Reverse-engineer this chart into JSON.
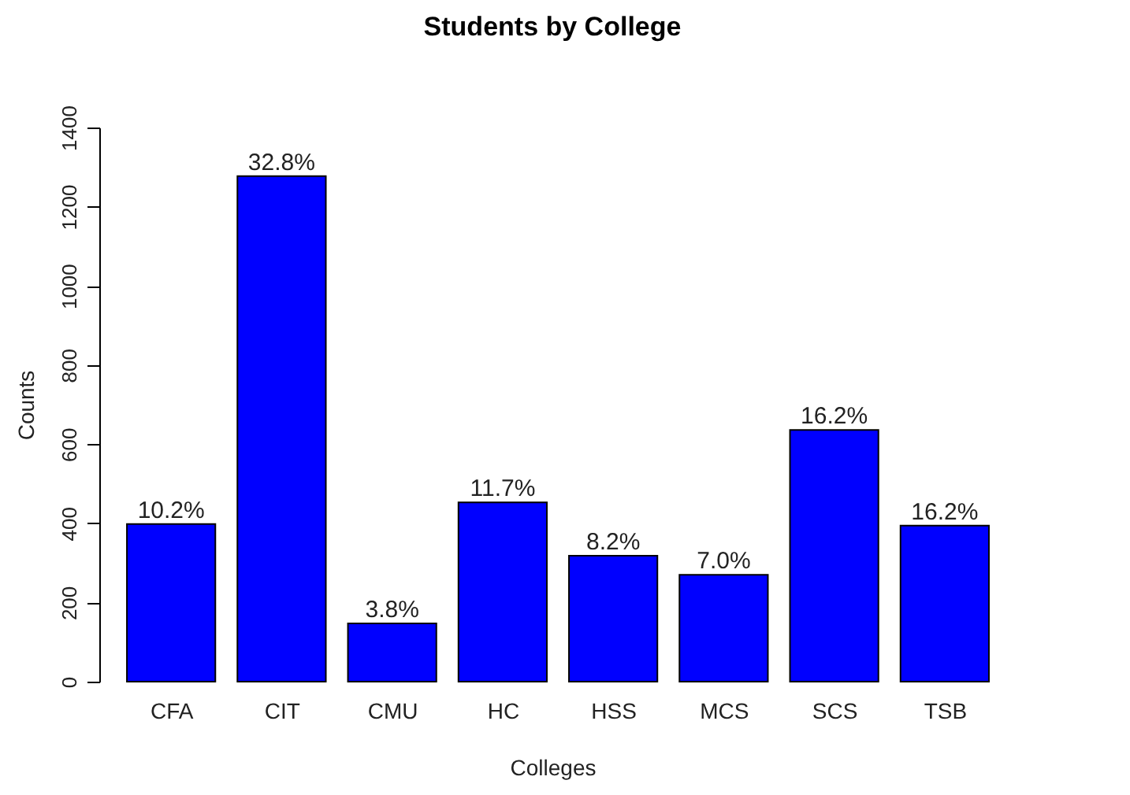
{
  "chart_data": {
    "type": "bar",
    "title": "Students by College",
    "xlabel": "Colleges",
    "ylabel": "Counts",
    "categories": [
      "CFA",
      "CIT",
      "CMU",
      "HC",
      "HSS",
      "MCS",
      "SCS",
      "TSB"
    ],
    "values": [
      398,
      1277,
      147,
      453,
      318,
      270,
      636,
      394
    ],
    "annotations": [
      {
        "text": "10.2%",
        "x": "CFA",
        "y": 398
      },
      {
        "text": "32.8%",
        "x": "CIT",
        "y": 1277
      },
      {
        "text": "3.8%",
        "x": "CMU",
        "y": 147
      },
      {
        "text": "11.7%",
        "x": "HC",
        "y": 453
      },
      {
        "text": "8.2%",
        "x": "HSS",
        "y": 318
      },
      {
        "text": "7.0%",
        "x": "MCS",
        "y": 270
      },
      {
        "text": "16.2%",
        "x": "SCS",
        "y": 636
      },
      {
        "text": "16.2%",
        "x": "TSB",
        "y": 394
      }
    ],
    "color": "#0000ff",
    "ylim": [
      0,
      1400
    ],
    "yticks": [
      0,
      200,
      400,
      600,
      800,
      1000,
      1200,
      1400
    ]
  }
}
